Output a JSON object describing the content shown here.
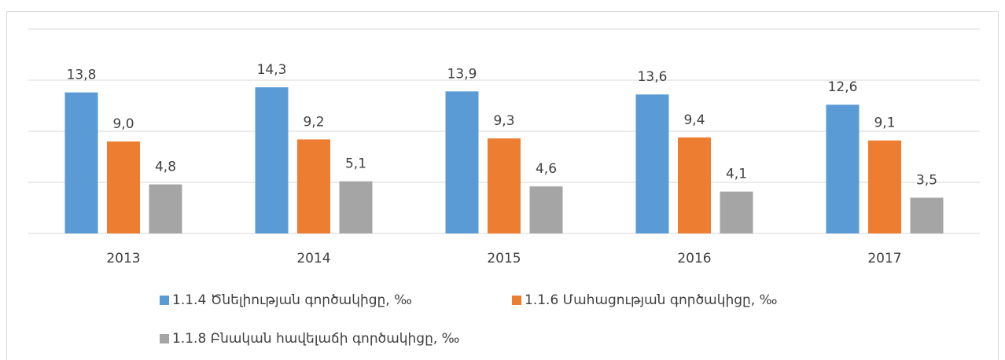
{
  "chart_data": {
    "type": "bar",
    "categories": [
      "2013",
      "2014",
      "2015",
      "2016",
      "2017"
    ],
    "series": [
      {
        "name": "1.1.4 Ծնելիության գործակիցը, ‰",
        "color": "#5b9bd5",
        "values": [
          13.8,
          14.3,
          13.9,
          13.6,
          12.6
        ],
        "value_labels": [
          "13,8",
          "14,3",
          "13,9",
          "13,6",
          "12,6"
        ]
      },
      {
        "name": "1.1.6 Մահացության գործակիցը, ‰",
        "color": "#ed7d31",
        "values": [
          9.0,
          9.2,
          9.3,
          9.4,
          9.1
        ],
        "value_labels": [
          "9,0",
          "9,2",
          "9,3",
          "9,4",
          "9,1"
        ]
      },
      {
        "name": "1.1.8 Բնական հավելաճի գործակիցը, ‰",
        "color": "#a5a5a5",
        "values": [
          4.8,
          5.1,
          4.6,
          4.1,
          3.5
        ],
        "value_labels": [
          "4,8",
          "5,1",
          "4,6",
          "4,1",
          "3,5"
        ]
      }
    ],
    "ylim": [
      0,
      20
    ],
    "yticks": [
      0,
      5,
      10,
      15,
      20
    ],
    "grid": true
  }
}
